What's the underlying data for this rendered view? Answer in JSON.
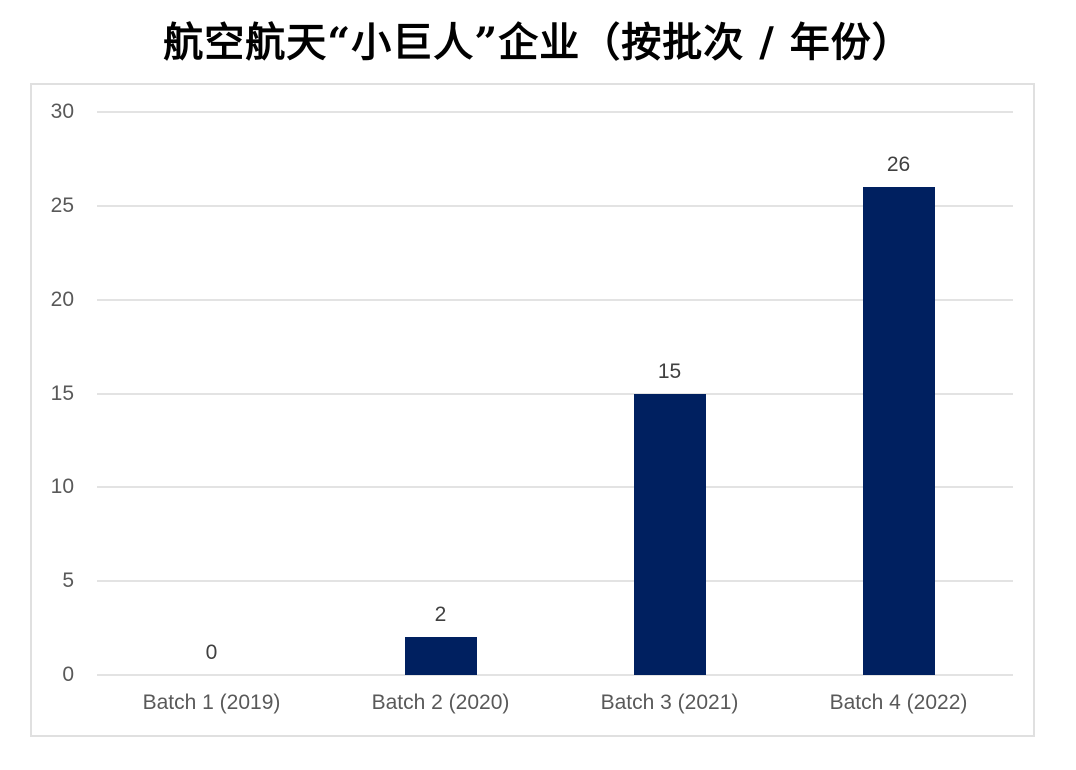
{
  "chart_data": {
    "type": "bar",
    "title": "航空航天“小巨人”企业（按批次 / 年份）",
    "categories": [
      "Batch 1 (2019)",
      "Batch 2 (2020)",
      "Batch 3 (2021)",
      "Batch 4 (2022)"
    ],
    "values": [
      0,
      2,
      15,
      26
    ],
    "data_labels": [
      "0",
      "2",
      "15",
      "26"
    ],
    "xlabel": "",
    "ylabel": "",
    "ylim": [
      0,
      30
    ],
    "yticks": [
      0,
      5,
      10,
      15,
      20,
      25,
      30
    ],
    "grid": true,
    "legend": "none",
    "colors": {
      "bar": "#002060",
      "gridline": "#e3e3e3",
      "panel_border": "#e0e0e0",
      "axis_label": "#595959",
      "data_label": "#404040",
      "title": "#000000",
      "background": "#ffffff"
    }
  }
}
